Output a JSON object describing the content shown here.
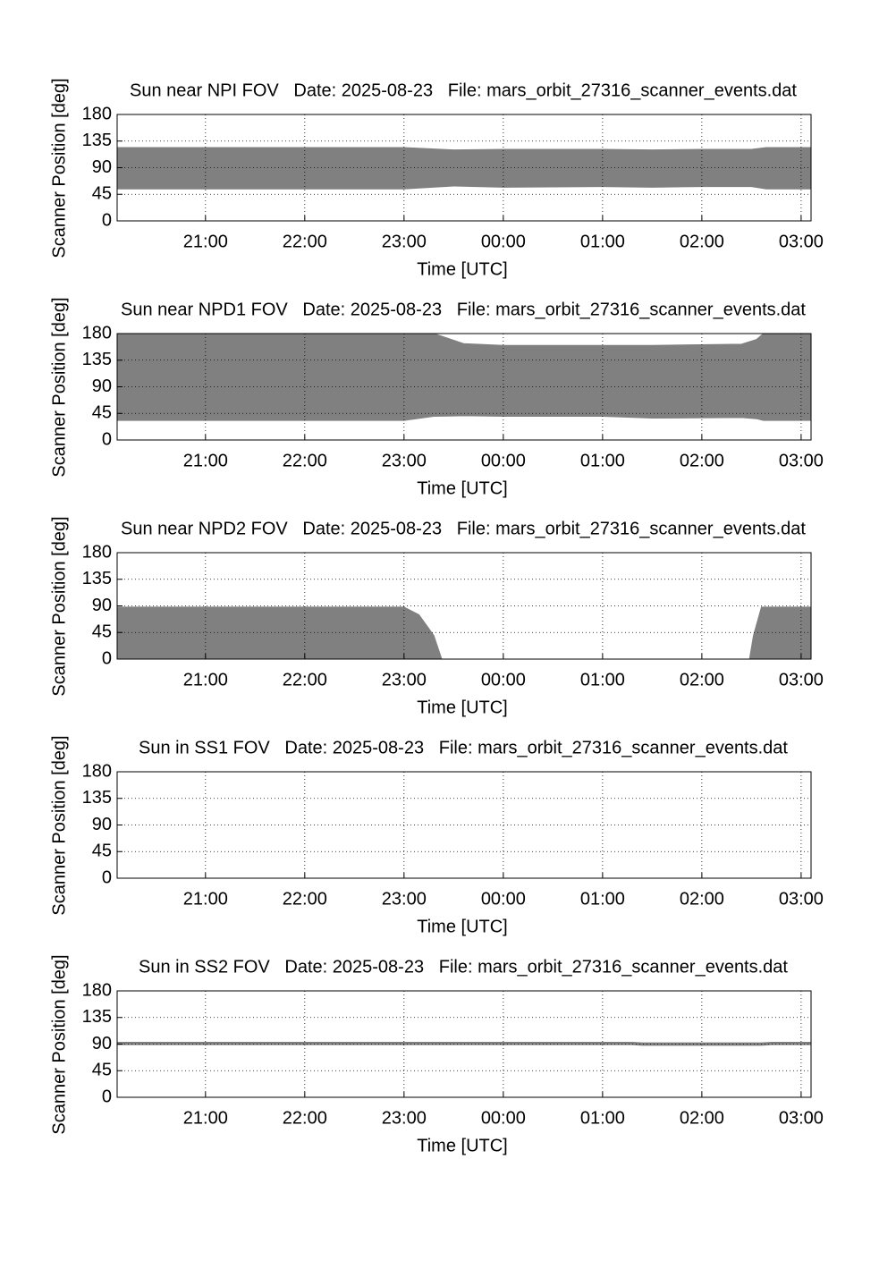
{
  "chart_data": [
    {
      "type": "range_area",
      "title": "Sun near NPI FOV   Date: 2025-08-23   File: mars_orbit_27316_scanner_events.dat",
      "xlabel": "Time [UTC]",
      "ylabel": "Scanner Position [deg]",
      "color": "#808080",
      "x": [
        20.11,
        23.0,
        23.5,
        24.0,
        25.0,
        25.5,
        26.0,
        26.5,
        26.65,
        27.1
      ],
      "upper": [
        124,
        124,
        120,
        121,
        121,
        120,
        121,
        121,
        124,
        124
      ],
      "lower": [
        54,
        54,
        59,
        57,
        58,
        57,
        58,
        58,
        54,
        54
      ],
      "xlim": [
        20.11,
        27.1
      ],
      "ylim": [
        0,
        180
      ],
      "xticks": [
        {
          "value": 21,
          "label": "21:00"
        },
        {
          "value": 22,
          "label": "22:00"
        },
        {
          "value": 23,
          "label": "23:00"
        },
        {
          "value": 24,
          "label": "00:00"
        },
        {
          "value": 25,
          "label": "01:00"
        },
        {
          "value": 26,
          "label": "02:00"
        },
        {
          "value": 27,
          "label": "03:00"
        }
      ],
      "yticks": [
        0,
        45,
        90,
        135,
        180
      ],
      "grid": true
    },
    {
      "type": "range_area",
      "title": "Sun near NPD1 FOV   Date: 2025-08-23   File: mars_orbit_27316_scanner_events.dat",
      "xlabel": "Time [UTC]",
      "ylabel": "Scanner Position [deg]",
      "color": "#808080",
      "x": [
        20.11,
        23.0,
        23.3,
        23.6,
        24.0,
        25.0,
        25.5,
        26.4,
        26.55,
        26.62,
        27.1
      ],
      "upper": [
        180,
        180,
        180,
        163,
        160,
        160,
        160,
        162,
        170,
        180,
        180
      ],
      "lower": [
        33,
        33,
        40,
        41,
        40,
        40,
        37,
        38,
        36,
        33,
        33
      ],
      "xlim": [
        20.11,
        27.1
      ],
      "ylim": [
        0,
        180
      ],
      "xticks": [
        {
          "value": 21,
          "label": "21:00"
        },
        {
          "value": 22,
          "label": "22:00"
        },
        {
          "value": 23,
          "label": "23:00"
        },
        {
          "value": 24,
          "label": "00:00"
        },
        {
          "value": 25,
          "label": "01:00"
        },
        {
          "value": 26,
          "label": "02:00"
        },
        {
          "value": 27,
          "label": "03:00"
        }
      ],
      "yticks": [
        0,
        45,
        90,
        135,
        180
      ],
      "grid": true
    },
    {
      "type": "range_area",
      "title": "Sun near NPD2 FOV   Date: 2025-08-23   File: mars_orbit_27316_scanner_events.dat",
      "xlabel": "Time [UTC]",
      "ylabel": "Scanner Position [deg]",
      "color": "#808080",
      "x": [
        20.11,
        23.0,
        23.15,
        23.3,
        23.38,
        26.48,
        26.52,
        26.6,
        27.1
      ],
      "upper": [
        88,
        88,
        75,
        40,
        0,
        0,
        40,
        88,
        88
      ],
      "lower": [
        0,
        0,
        0,
        0,
        0,
        0,
        0,
        0,
        0
      ],
      "xlim": [
        20.11,
        27.1
      ],
      "ylim": [
        0,
        180
      ],
      "xticks": [
        {
          "value": 21,
          "label": "21:00"
        },
        {
          "value": 22,
          "label": "22:00"
        },
        {
          "value": 23,
          "label": "23:00"
        },
        {
          "value": 24,
          "label": "00:00"
        },
        {
          "value": 25,
          "label": "01:00"
        },
        {
          "value": 26,
          "label": "02:00"
        },
        {
          "value": 27,
          "label": "03:00"
        }
      ],
      "yticks": [
        0,
        45,
        90,
        135,
        180
      ],
      "grid": true
    },
    {
      "type": "range_area",
      "title": "Sun in SS1 FOV   Date: 2025-08-23   File: mars_orbit_27316_scanner_events.dat",
      "xlabel": "Time [UTC]",
      "ylabel": "Scanner Position [deg]",
      "color": "#808080",
      "x": [],
      "upper": [],
      "lower": [],
      "xlim": [
        20.11,
        27.1
      ],
      "ylim": [
        0,
        180
      ],
      "xticks": [
        {
          "value": 21,
          "label": "21:00"
        },
        {
          "value": 22,
          "label": "22:00"
        },
        {
          "value": 23,
          "label": "23:00"
        },
        {
          "value": 24,
          "label": "00:00"
        },
        {
          "value": 25,
          "label": "01:00"
        },
        {
          "value": 26,
          "label": "02:00"
        },
        {
          "value": 27,
          "label": "03:00"
        }
      ],
      "yticks": [
        0,
        45,
        90,
        135,
        180
      ],
      "grid": true
    },
    {
      "type": "range_area",
      "title": "Sun in SS2 FOV   Date: 2025-08-23   File: mars_orbit_27316_scanner_events.dat",
      "xlabel": "Time [UTC]",
      "ylabel": "Scanner Position [deg]",
      "color": "#808080",
      "x": [
        20.11,
        25.3,
        25.4,
        26.6,
        26.7,
        27.1
      ],
      "upper": [
        93,
        93,
        92,
        92,
        93,
        93
      ],
      "lower": [
        89,
        89,
        88,
        88,
        89,
        89
      ],
      "xlim": [
        20.11,
        27.1
      ],
      "ylim": [
        0,
        180
      ],
      "xticks": [
        {
          "value": 21,
          "label": "21:00"
        },
        {
          "value": 22,
          "label": "22:00"
        },
        {
          "value": 23,
          "label": "23:00"
        },
        {
          "value": 24,
          "label": "00:00"
        },
        {
          "value": 25,
          "label": "01:00"
        },
        {
          "value": 26,
          "label": "02:00"
        },
        {
          "value": 27,
          "label": "03:00"
        }
      ],
      "yticks": [
        0,
        45,
        90,
        135,
        180
      ],
      "grid": true
    }
  ]
}
